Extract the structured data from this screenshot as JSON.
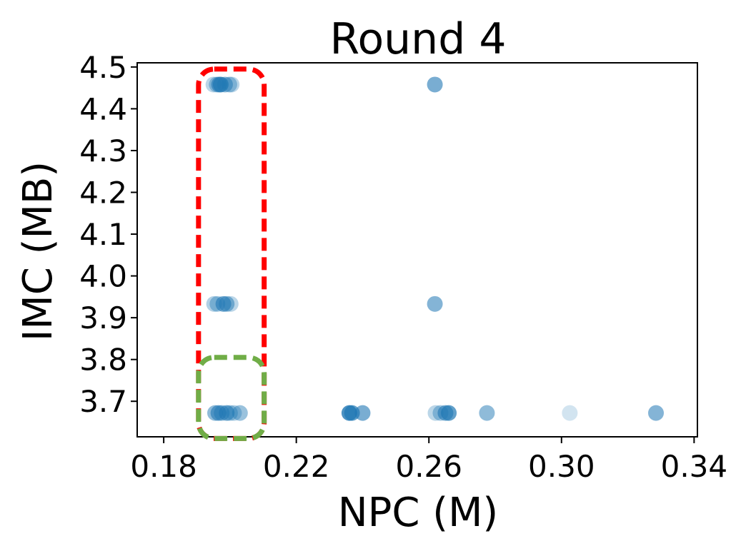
{
  "chart_data": {
    "type": "scatter",
    "title": "Round 4",
    "xlabel": "NPC (M)",
    "ylabel": "IMC (MB)",
    "xlim": [
      0.172,
      0.341
    ],
    "ylim": [
      3.615,
      4.51
    ],
    "x_ticks": [
      "0.18",
      "0.22",
      "0.26",
      "0.30",
      "0.34"
    ],
    "x_tick_values": [
      0.18,
      0.22,
      0.26,
      0.3,
      0.34
    ],
    "y_ticks": [
      "3.7",
      "3.8",
      "3.9",
      "4.0",
      "4.1",
      "4.2",
      "4.3",
      "4.4",
      "4.5"
    ],
    "y_tick_values": [
      3.7,
      3.8,
      3.9,
      4.0,
      4.1,
      4.2,
      4.3,
      4.4,
      4.5
    ],
    "grid": false,
    "point_color": "#1f77b4",
    "points": [
      {
        "x": 0.195,
        "y": 4.458,
        "alpha": 0.3
      },
      {
        "x": 0.196,
        "y": 4.458,
        "alpha": 0.4
      },
      {
        "x": 0.1967,
        "y": 4.458,
        "alpha": 0.6
      },
      {
        "x": 0.1972,
        "y": 4.458,
        "alpha": 0.7
      },
      {
        "x": 0.1985,
        "y": 4.458,
        "alpha": 0.5
      },
      {
        "x": 0.1998,
        "y": 4.458,
        "alpha": 0.4
      },
      {
        "x": 0.2005,
        "y": 4.458,
        "alpha": 0.3
      },
      {
        "x": 0.2618,
        "y": 4.458,
        "alpha": 0.6
      },
      {
        "x": 0.1952,
        "y": 3.933,
        "alpha": 0.35
      },
      {
        "x": 0.1962,
        "y": 3.933,
        "alpha": 0.4
      },
      {
        "x": 0.198,
        "y": 3.933,
        "alpha": 0.6
      },
      {
        "x": 0.199,
        "y": 3.933,
        "alpha": 0.5
      },
      {
        "x": 0.2002,
        "y": 3.933,
        "alpha": 0.3
      },
      {
        "x": 0.2618,
        "y": 3.933,
        "alpha": 0.55
      },
      {
        "x": 0.1955,
        "y": 3.672,
        "alpha": 0.5
      },
      {
        "x": 0.1965,
        "y": 3.672,
        "alpha": 0.6
      },
      {
        "x": 0.1975,
        "y": 3.672,
        "alpha": 0.5
      },
      {
        "x": 0.199,
        "y": 3.672,
        "alpha": 0.6
      },
      {
        "x": 0.2,
        "y": 3.672,
        "alpha": 0.4
      },
      {
        "x": 0.2012,
        "y": 3.672,
        "alpha": 0.35
      },
      {
        "x": 0.203,
        "y": 3.672,
        "alpha": 0.45
      },
      {
        "x": 0.236,
        "y": 3.672,
        "alpha": 0.8
      },
      {
        "x": 0.2368,
        "y": 3.672,
        "alpha": 0.7
      },
      {
        "x": 0.24,
        "y": 3.672,
        "alpha": 0.6
      },
      {
        "x": 0.262,
        "y": 3.672,
        "alpha": 0.3
      },
      {
        "x": 0.2635,
        "y": 3.672,
        "alpha": 0.4
      },
      {
        "x": 0.265,
        "y": 3.672,
        "alpha": 0.6
      },
      {
        "x": 0.266,
        "y": 3.672,
        "alpha": 0.7
      },
      {
        "x": 0.2775,
        "y": 3.672,
        "alpha": 0.5
      },
      {
        "x": 0.3025,
        "y": 3.672,
        "alpha": 0.2
      },
      {
        "x": 0.3285,
        "y": 3.672,
        "alpha": 0.55
      }
    ],
    "highlight_boxes": [
      {
        "name": "red-dashed-box",
        "color": "#ff0000",
        "x_range": [
          0.1905,
          0.2103
        ],
        "y_range": [
          3.611,
          4.495
        ]
      },
      {
        "name": "green-dashed-box",
        "color": "#70ad47",
        "x_range": [
          0.1905,
          0.2103
        ],
        "y_range": [
          3.611,
          3.805
        ]
      }
    ]
  }
}
